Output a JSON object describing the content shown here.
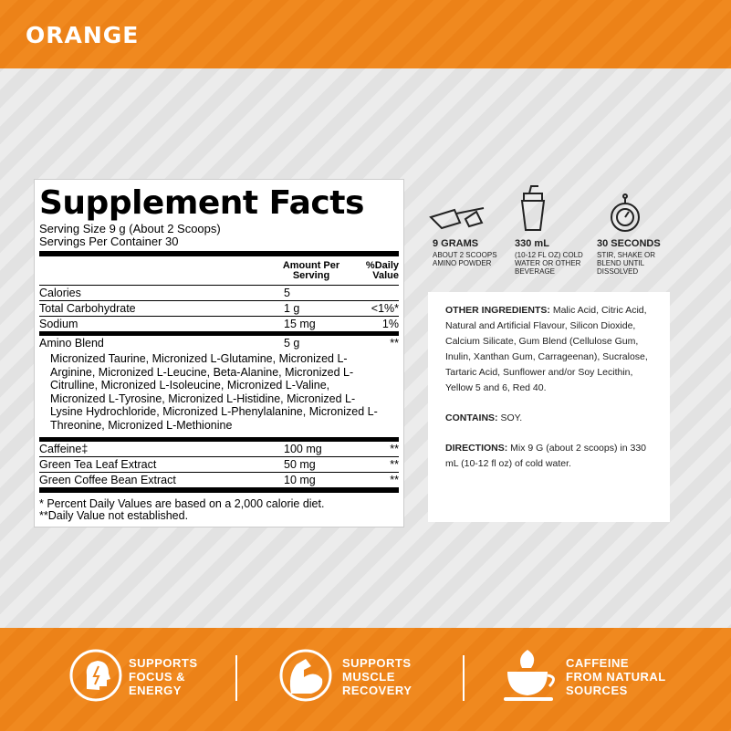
{
  "header": {
    "title": "ORANGE"
  },
  "facts": {
    "title": "Supplement Facts",
    "serving_size": "Serving Size 9 g (About 2 Scoops)",
    "servings": "Servings Per Container 30",
    "col_amount": "Amount Per Serving",
    "col_dv": "%Daily Value",
    "rows": [
      {
        "name": "Calories",
        "amount": "5"
      },
      {
        "name": "Total Carbohydrate",
        "amount": "1 g",
        "dv": "<1%*"
      },
      {
        "name": "Sodium",
        "amount": "15 mg",
        "dv": "1%"
      },
      {
        "name": "Amino Blend",
        "amount": "5 g",
        "dv": "**"
      },
      {
        "name": "Caffeine‡",
        "amount": "100 mg",
        "dv": "**"
      },
      {
        "name": "Green Tea Leaf Extract",
        "amount": "50 mg",
        "dv": "**"
      },
      {
        "name": "Green Coffee Bean Extract",
        "amount": "10 mg",
        "dv": "**"
      }
    ],
    "blend": "Micronized Taurine, Micronized L-Glutamine, Micronized L-Arginine, Micronized L-Leucine, Beta-Alanine, Micronized L-Citrulline, Micronized L-Isoleucine, Micronized L-Valine, Micronized L-Tyrosine, Micronized L-Histidine, Micronized L-Lysine Hydrochloride, Micronized L-Phenylalanine, Micronized L-Threonine, Micronized L-Methionine",
    "footnotes": [
      "* Percent Daily Values are based on a 2,000 calorie diet.",
      "**Daily Value not established."
    ]
  },
  "steps": [
    {
      "title": "9 GRAMS",
      "text": "ABOUT 2 SCOOPS AMINO POWDER"
    },
    {
      "title": "330 mL",
      "text": "(10-12 FL OZ) COLD WATER OR OTHER BEVERAGE"
    },
    {
      "title": "30 SECONDS",
      "text": "STIR, SHAKE OR BLEND UNTIL DISSOLVED"
    }
  ],
  "info": [
    {
      "label": "OTHER INGREDIENTS:",
      "text": "Malic Acid, Citric Acid, Natural and Artificial Flavour, Silicon Dioxide, Calcium Silicate, Gum Blend (Cellulose Gum, Inulin, Xanthan Gum, Carrageenan), Sucralose, Tartaric Acid, Sunflower and/or Soy Lecithin, Yellow 5 and 6, Red 40."
    },
    {
      "label": "CONTAINS:",
      "text": "SOY."
    },
    {
      "label": "DIRECTIONS:",
      "text": "Mix 9 G (about 2 scoops) in 330 mL (10-12 fl oz) of cold water."
    }
  ],
  "benefits": [
    [
      "SUPPORTS",
      "FOCUS &",
      "ENERGY"
    ],
    [
      "SUPPORTS",
      "MUSCLE",
      "RECOVERY"
    ],
    [
      "CAFFEINE",
      "FROM NATURAL",
      "SOURCES"
    ]
  ]
}
